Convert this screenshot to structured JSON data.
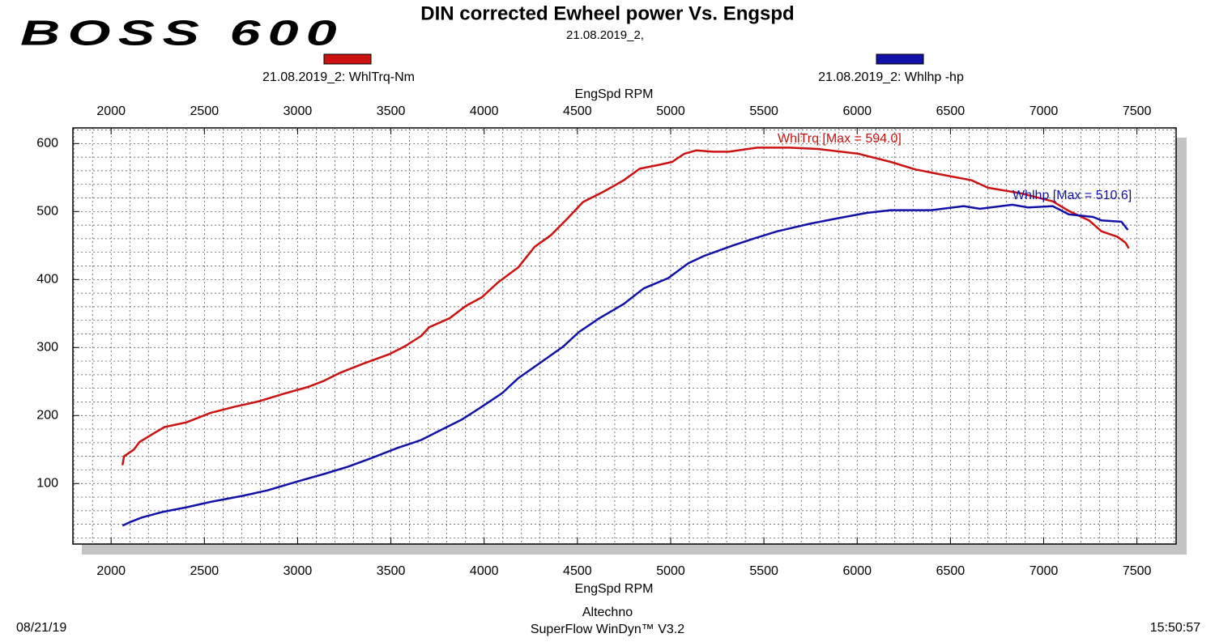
{
  "logo": "BOSS 600",
  "footer": {
    "date": "08/21/19",
    "company": "Altechno",
    "software": "SuperFlow WinDyn™ V3.2",
    "time": "15:50:57"
  },
  "chart_data": {
    "type": "line",
    "title": "DIN corrected Ewheel power Vs. Engspd",
    "subtitle": "21.08.2019_2,",
    "xlabel": "EngSpd RPM",
    "xlim": [
      1795,
      7710
    ],
    "xticks": [
      2000,
      2500,
      3000,
      3500,
      4000,
      4500,
      5000,
      5500,
      6000,
      6500,
      7000,
      7500
    ],
    "ylim": [
      11,
      623
    ],
    "yticks": [
      100,
      200,
      300,
      400,
      500,
      600
    ],
    "grid": true,
    "x_grid_step": 100,
    "y_grid_step": 20,
    "series": [
      {
        "name": "21.08.2019_2: WhlTrq-Nm",
        "color": "#cc1111",
        "annotation": "WhlTrq [Max = 594.0]",
        "x": [
          2061,
          2069,
          2122,
          2152,
          2230,
          2286,
          2404,
          2534,
          2664,
          2794,
          2924,
          3055,
          3141,
          3228,
          3359,
          3489,
          3576,
          3662,
          3706,
          3814,
          3901,
          3988,
          4075,
          4183,
          4270,
          4357,
          4444,
          4530,
          4639,
          4748,
          4834,
          4943,
          5008,
          5073,
          5138,
          5225,
          5312,
          5464,
          5638,
          5789,
          6006,
          6180,
          6310,
          6440,
          6614,
          6701,
          6874,
          7048,
          7134,
          7243,
          7309,
          7395,
          7439,
          7456
        ],
        "values": [
          127,
          140,
          150,
          161,
          174,
          183,
          190,
          204,
          213,
          221,
          232,
          242,
          251,
          263,
          277,
          290,
          302,
          317,
          330,
          343,
          361,
          374,
          396,
          418,
          448,
          465,
          489,
          514,
          529,
          546,
          563,
          569,
          573,
          585,
          590,
          588,
          588,
          594,
          594,
          592,
          585,
          573,
          562,
          555,
          546,
          535,
          527,
          515,
          501,
          487,
          471,
          463,
          454,
          446
        ]
      },
      {
        "name": "21.08.2019_2: Whlhp -hp",
        "color": "#1111aa",
        "annotation": "Whlhp  [Max = 510.6]",
        "x": [
          2061,
          2100,
          2165,
          2273,
          2404,
          2534,
          2707,
          2838,
          3011,
          3141,
          3272,
          3402,
          3532,
          3662,
          3749,
          3880,
          3988,
          4097,
          4183,
          4313,
          4422,
          4509,
          4617,
          4748,
          4856,
          4986,
          5095,
          5181,
          5333,
          5442,
          5572,
          5746,
          5876,
          6050,
          6180,
          6397,
          6571,
          6658,
          6832,
          6918,
          7048,
          7134,
          7265,
          7309,
          7417,
          7451
        ],
        "values": [
          38,
          43,
          50,
          58,
          65,
          73,
          82,
          90,
          104,
          114,
          125,
          138,
          152,
          164,
          176,
          194,
          213,
          233,
          255,
          280,
          301,
          323,
          343,
          364,
          387,
          402,
          424,
          435,
          450,
          460,
          471,
          482,
          489,
          498,
          502,
          502,
          508,
          504,
          510,
          506,
          508,
          496,
          492,
          487,
          485,
          473
        ]
      }
    ]
  }
}
